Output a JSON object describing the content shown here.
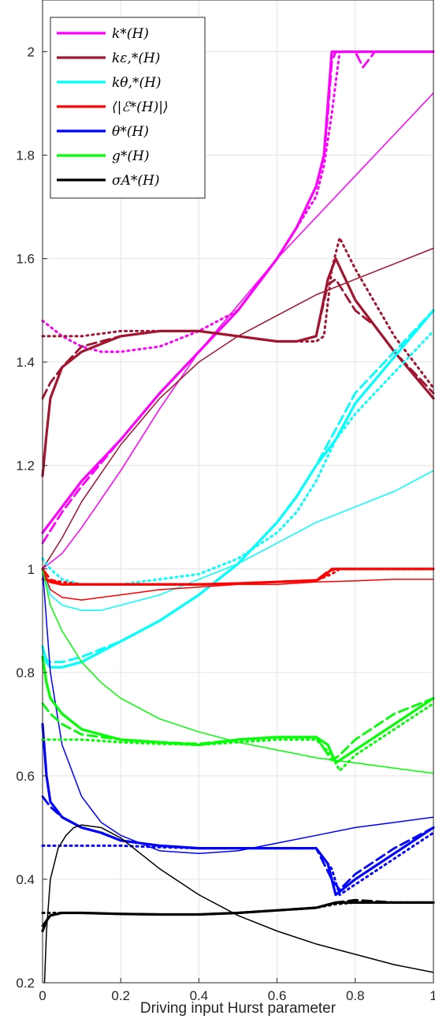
{
  "chart_data": {
    "type": "line",
    "title": "",
    "xlabel": "Driving input Hurst parameter",
    "ylabel": "",
    "xlim": [
      0,
      1
    ],
    "ylim": [
      0.2,
      2.1
    ],
    "xticks": [
      0,
      0.2,
      0.4,
      0.6,
      0.8,
      1
    ],
    "xtick_labels": [
      "0",
      "0.2",
      "0.4",
      "0.6",
      "0.8",
      "1"
    ],
    "yticks": [
      0.2,
      0.4,
      0.6,
      0.8,
      1,
      1.2,
      1.4,
      1.6,
      1.8,
      2
    ],
    "ytick_labels": [
      "0.2",
      "0.4",
      "0.6",
      "0.8",
      "1",
      "1.2",
      "1.4",
      "1.6",
      "1.8",
      "2"
    ],
    "grid": true,
    "legend_position": "top-left",
    "legend": [
      {
        "label": "k*(H)",
        "color": "#ff00ff"
      },
      {
        "label": "kε,*(H)",
        "color": "#a2142f"
      },
      {
        "label": "kθ,*(H)",
        "color": "#00ffff"
      },
      {
        "label": "⟨|ℰ*(H)|⟩",
        "color": "#ff0000"
      },
      {
        "label": "θ*(H)",
        "color": "#0000ff"
      },
      {
        "label": "g*(H)",
        "color": "#00ff00"
      },
      {
        "label": "σA*(H)",
        "color": "#000000"
      }
    ],
    "series": [
      {
        "color": "#ff00ff",
        "style": "thin",
        "x": [
          0,
          0.05,
          0.1,
          0.2,
          0.3,
          0.4,
          0.5,
          0.6,
          0.7,
          0.8,
          0.9,
          1
        ],
        "y": [
          1.0,
          1.03,
          1.08,
          1.19,
          1.31,
          1.42,
          1.51,
          1.6,
          1.68,
          1.76,
          1.84,
          1.92
        ]
      },
      {
        "color": "#ff00ff",
        "style": "solid",
        "x": [
          0,
          0.05,
          0.1,
          0.2,
          0.3,
          0.4,
          0.5,
          0.6,
          0.65,
          0.7,
          0.72,
          0.73,
          0.74,
          0.75,
          0.8,
          0.9,
          1
        ],
        "y": [
          1.07,
          1.12,
          1.17,
          1.25,
          1.34,
          1.42,
          1.5,
          1.6,
          1.66,
          1.74,
          1.8,
          1.9,
          2.0,
          2.0,
          2.0,
          2.0,
          2.0
        ]
      },
      {
        "color": "#ff00ff",
        "style": "dashed",
        "x": [
          0,
          0.05,
          0.1,
          0.2,
          0.3,
          0.4,
          0.5,
          0.6,
          0.65,
          0.7,
          0.72,
          0.73,
          0.74,
          0.75,
          0.8,
          0.82,
          0.85,
          0.9,
          1
        ],
        "y": [
          1.05,
          1.11,
          1.16,
          1.25,
          1.34,
          1.42,
          1.5,
          1.6,
          1.66,
          1.74,
          1.8,
          1.88,
          1.98,
          2.0,
          2.0,
          1.97,
          2.0,
          2.0,
          2.0
        ]
      },
      {
        "color": "#ff00ff",
        "style": "dotted",
        "x": [
          0,
          0.05,
          0.1,
          0.15,
          0.2,
          0.3,
          0.4,
          0.5,
          0.6,
          0.65,
          0.7,
          0.72,
          0.74,
          0.76,
          0.8,
          0.9,
          1
        ],
        "y": [
          1.48,
          1.45,
          1.43,
          1.42,
          1.42,
          1.43,
          1.46,
          1.5,
          1.6,
          1.66,
          1.72,
          1.78,
          1.88,
          2.0,
          2.0,
          2.0,
          2.0
        ]
      },
      {
        "color": "#a2142f",
        "style": "thin",
        "x": [
          0,
          0.05,
          0.1,
          0.2,
          0.3,
          0.4,
          0.5,
          0.6,
          0.7,
          0.8,
          0.9,
          1
        ],
        "y": [
          1.0,
          1.06,
          1.13,
          1.24,
          1.33,
          1.4,
          1.45,
          1.49,
          1.53,
          1.56,
          1.59,
          1.62
        ]
      },
      {
        "color": "#a2142f",
        "style": "solid",
        "x": [
          0,
          0.01,
          0.02,
          0.05,
          0.1,
          0.2,
          0.3,
          0.4,
          0.5,
          0.6,
          0.65,
          0.7,
          0.73,
          0.75,
          0.8,
          0.9,
          1
        ],
        "y": [
          1.18,
          1.26,
          1.33,
          1.39,
          1.42,
          1.45,
          1.46,
          1.46,
          1.45,
          1.44,
          1.44,
          1.45,
          1.56,
          1.6,
          1.52,
          1.42,
          1.33
        ]
      },
      {
        "color": "#a2142f",
        "style": "dashed",
        "x": [
          0,
          0.02,
          0.05,
          0.1,
          0.2,
          0.3,
          0.4,
          0.5,
          0.6,
          0.65,
          0.7,
          0.73,
          0.75,
          0.8,
          0.85,
          0.9,
          1
        ],
        "y": [
          1.33,
          1.36,
          1.39,
          1.43,
          1.45,
          1.46,
          1.46,
          1.45,
          1.44,
          1.44,
          1.45,
          1.55,
          1.56,
          1.5,
          1.47,
          1.42,
          1.34
        ]
      },
      {
        "color": "#a2142f",
        "style": "dotted",
        "x": [
          0,
          0.05,
          0.1,
          0.2,
          0.3,
          0.4,
          0.5,
          0.6,
          0.7,
          0.72,
          0.74,
          0.76,
          0.8,
          0.9,
          1
        ],
        "y": [
          1.45,
          1.45,
          1.45,
          1.46,
          1.46,
          1.46,
          1.45,
          1.44,
          1.44,
          1.45,
          1.58,
          1.64,
          1.58,
          1.45,
          1.35
        ]
      },
      {
        "color": "#00ffff",
        "style": "thin",
        "x": [
          0,
          0.02,
          0.05,
          0.1,
          0.15,
          0.2,
          0.3,
          0.4,
          0.5,
          0.6,
          0.7,
          0.8,
          0.9,
          1
        ],
        "y": [
          1.0,
          0.95,
          0.93,
          0.92,
          0.92,
          0.93,
          0.95,
          0.98,
          1.01,
          1.05,
          1.09,
          1.12,
          1.15,
          1.19
        ]
      },
      {
        "color": "#00ffff",
        "style": "solid",
        "x": [
          0,
          0.01,
          0.02,
          0.05,
          0.1,
          0.2,
          0.3,
          0.4,
          0.5,
          0.6,
          0.65,
          0.7,
          0.75,
          0.8,
          0.9,
          1
        ],
        "y": [
          0.85,
          0.82,
          0.81,
          0.81,
          0.82,
          0.86,
          0.9,
          0.95,
          1.01,
          1.09,
          1.14,
          1.2,
          1.25,
          1.32,
          1.41,
          1.5
        ]
      },
      {
        "color": "#00ffff",
        "style": "dashed",
        "x": [
          0,
          0.02,
          0.05,
          0.1,
          0.2,
          0.3,
          0.4,
          0.5,
          0.6,
          0.65,
          0.7,
          0.75,
          0.8,
          0.9,
          1
        ],
        "y": [
          0.83,
          0.82,
          0.82,
          0.83,
          0.86,
          0.9,
          0.95,
          1.01,
          1.09,
          1.14,
          1.2,
          1.27,
          1.34,
          1.42,
          1.5
        ]
      },
      {
        "color": "#00ffff",
        "style": "dotted",
        "x": [
          0,
          0.02,
          0.05,
          0.1,
          0.2,
          0.3,
          0.4,
          0.5,
          0.6,
          0.65,
          0.7,
          0.75,
          0.8,
          0.9,
          1
        ],
        "y": [
          1.02,
          1.0,
          0.98,
          0.97,
          0.97,
          0.98,
          0.99,
          1.02,
          1.07,
          1.11,
          1.17,
          1.25,
          1.3,
          1.38,
          1.46
        ]
      },
      {
        "color": "#ff0000",
        "style": "thin",
        "x": [
          0,
          0.02,
          0.05,
          0.1,
          0.2,
          0.3,
          0.4,
          0.5,
          0.6,
          0.7,
          0.8,
          0.9,
          1
        ],
        "y": [
          1.0,
          0.96,
          0.945,
          0.94,
          0.95,
          0.96,
          0.965,
          0.97,
          0.97,
          0.975,
          0.977,
          0.98,
          0.98
        ]
      },
      {
        "color": "#ff0000",
        "style": "solid",
        "x": [
          0,
          0.01,
          0.02,
          0.05,
          0.1,
          0.2,
          0.3,
          0.4,
          0.5,
          0.6,
          0.7,
          0.72,
          0.74,
          0.76,
          0.8,
          0.9,
          1
        ],
        "y": [
          1.0,
          0.98,
          0.975,
          0.97,
          0.97,
          0.97,
          0.97,
          0.97,
          0.972,
          0.975,
          0.978,
          0.985,
          1.0,
          1.0,
          1.0,
          1.0,
          1.0
        ]
      },
      {
        "color": "#ff0000",
        "style": "dashed",
        "x": [
          0,
          0.02,
          0.05,
          0.1,
          0.2,
          0.3,
          0.4,
          0.5,
          0.6,
          0.7,
          0.73,
          0.75,
          0.8,
          0.9,
          1
        ],
        "y": [
          1.0,
          0.98,
          0.97,
          0.97,
          0.97,
          0.97,
          0.97,
          0.972,
          0.975,
          0.978,
          0.995,
          1.0,
          1.0,
          1.0,
          1.0
        ]
      },
      {
        "color": "#ff0000",
        "style": "dotted",
        "x": [
          0,
          0.05,
          0.1,
          0.2,
          0.3,
          0.4,
          0.5,
          0.6,
          0.7,
          0.74,
          0.76,
          0.8,
          0.9,
          1
        ],
        "y": [
          0.98,
          0.975,
          0.97,
          0.97,
          0.97,
          0.97,
          0.972,
          0.975,
          0.978,
          0.99,
          1.0,
          1.0,
          1.0,
          1.0
        ]
      },
      {
        "color": "#0000ff",
        "style": "thin",
        "x": [
          0,
          0.02,
          0.05,
          0.1,
          0.15,
          0.2,
          0.3,
          0.4,
          0.5,
          0.6,
          0.7,
          0.8,
          0.9,
          1
        ],
        "y": [
          1.0,
          0.8,
          0.66,
          0.56,
          0.51,
          0.485,
          0.455,
          0.45,
          0.455,
          0.47,
          0.485,
          0.5,
          0.51,
          0.52
        ]
      },
      {
        "color": "#0000ff",
        "style": "solid",
        "x": [
          0,
          0.01,
          0.02,
          0.05,
          0.1,
          0.15,
          0.2,
          0.3,
          0.4,
          0.5,
          0.6,
          0.7,
          0.73,
          0.75,
          0.8,
          0.9,
          1
        ],
        "y": [
          0.7,
          0.6,
          0.55,
          0.52,
          0.5,
          0.49,
          0.475,
          0.465,
          0.46,
          0.46,
          0.46,
          0.46,
          0.43,
          0.37,
          0.4,
          0.45,
          0.5
        ]
      },
      {
        "color": "#0000ff",
        "style": "dashed",
        "x": [
          0,
          0.02,
          0.05,
          0.1,
          0.15,
          0.2,
          0.3,
          0.4,
          0.5,
          0.6,
          0.7,
          0.74,
          0.76,
          0.8,
          0.9,
          1
        ],
        "y": [
          0.56,
          0.54,
          0.52,
          0.5,
          0.49,
          0.475,
          0.465,
          0.46,
          0.46,
          0.46,
          0.46,
          0.4,
          0.38,
          0.41,
          0.46,
          0.5
        ]
      },
      {
        "color": "#0000ff",
        "style": "dotted",
        "x": [
          0,
          0.05,
          0.1,
          0.2,
          0.3,
          0.4,
          0.5,
          0.6,
          0.7,
          0.74,
          0.76,
          0.8,
          0.9,
          1
        ],
        "y": [
          0.465,
          0.465,
          0.465,
          0.465,
          0.462,
          0.46,
          0.46,
          0.46,
          0.46,
          0.42,
          0.37,
          0.39,
          0.44,
          0.49
        ]
      },
      {
        "color": "#00ff00",
        "style": "thin",
        "x": [
          0,
          0.02,
          0.05,
          0.1,
          0.15,
          0.2,
          0.3,
          0.4,
          0.5,
          0.6,
          0.7,
          0.8,
          0.9,
          1
        ],
        "y": [
          1.0,
          0.93,
          0.88,
          0.82,
          0.78,
          0.75,
          0.71,
          0.685,
          0.665,
          0.65,
          0.635,
          0.625,
          0.615,
          0.605
        ]
      },
      {
        "color": "#00ff00",
        "style": "solid",
        "x": [
          0,
          0.01,
          0.02,
          0.05,
          0.1,
          0.15,
          0.2,
          0.3,
          0.4,
          0.5,
          0.6,
          0.7,
          0.73,
          0.75,
          0.8,
          0.9,
          1
        ],
        "y": [
          0.83,
          0.78,
          0.75,
          0.72,
          0.69,
          0.68,
          0.67,
          0.665,
          0.66,
          0.67,
          0.675,
          0.675,
          0.66,
          0.625,
          0.65,
          0.7,
          0.75
        ]
      },
      {
        "color": "#00ff00",
        "style": "dashed",
        "x": [
          0,
          0.02,
          0.05,
          0.1,
          0.2,
          0.3,
          0.4,
          0.5,
          0.6,
          0.7,
          0.74,
          0.76,
          0.8,
          0.9,
          1
        ],
        "y": [
          0.74,
          0.72,
          0.7,
          0.68,
          0.67,
          0.665,
          0.662,
          0.67,
          0.675,
          0.675,
          0.63,
          0.64,
          0.67,
          0.72,
          0.75
        ]
      },
      {
        "color": "#00ff00",
        "style": "dotted",
        "x": [
          0,
          0.05,
          0.1,
          0.2,
          0.3,
          0.4,
          0.5,
          0.6,
          0.7,
          0.74,
          0.76,
          0.8,
          0.9,
          1
        ],
        "y": [
          0.67,
          0.67,
          0.67,
          0.665,
          0.662,
          0.66,
          0.665,
          0.67,
          0.67,
          0.64,
          0.61,
          0.64,
          0.69,
          0.74
        ]
      },
      {
        "color": "#000000",
        "style": "thin",
        "x": [
          0.005,
          0.01,
          0.02,
          0.04,
          0.06,
          0.08,
          0.1,
          0.15,
          0.2,
          0.3,
          0.4,
          0.5,
          0.6,
          0.7,
          0.8,
          0.9,
          1
        ],
        "y": [
          0.2,
          0.3,
          0.4,
          0.46,
          0.485,
          0.5,
          0.505,
          0.5,
          0.48,
          0.42,
          0.37,
          0.33,
          0.3,
          0.275,
          0.255,
          0.235,
          0.22
        ]
      },
      {
        "color": "#000000",
        "style": "solid",
        "x": [
          0,
          0.01,
          0.02,
          0.05,
          0.1,
          0.2,
          0.3,
          0.4,
          0.5,
          0.6,
          0.7,
          0.75,
          0.8,
          0.9,
          1
        ],
        "y": [
          0.3,
          0.32,
          0.33,
          0.335,
          0.335,
          0.333,
          0.332,
          0.332,
          0.335,
          0.34,
          0.345,
          0.355,
          0.355,
          0.355,
          0.355
        ]
      },
      {
        "color": "#000000",
        "style": "dashed",
        "x": [
          0,
          0.02,
          0.05,
          0.1,
          0.2,
          0.3,
          0.4,
          0.5,
          0.6,
          0.7,
          0.75,
          0.8,
          0.9,
          1
        ],
        "y": [
          0.31,
          0.33,
          0.335,
          0.335,
          0.333,
          0.332,
          0.332,
          0.335,
          0.34,
          0.345,
          0.355,
          0.36,
          0.355,
          0.355
        ]
      },
      {
        "color": "#000000",
        "style": "dotted",
        "x": [
          0,
          0.05,
          0.1,
          0.2,
          0.3,
          0.4,
          0.5,
          0.6,
          0.7,
          0.75,
          0.8,
          0.9,
          1
        ],
        "y": [
          0.335,
          0.335,
          0.335,
          0.333,
          0.332,
          0.332,
          0.335,
          0.34,
          0.345,
          0.352,
          0.355,
          0.355,
          0.355
        ]
      }
    ]
  }
}
